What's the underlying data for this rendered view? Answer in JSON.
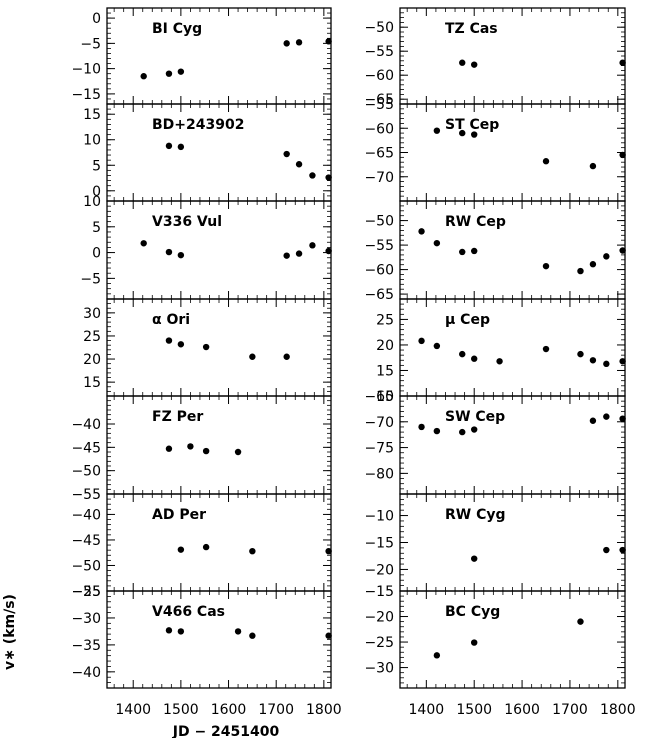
{
  "figure": {
    "ylabel": "v∗ (km/s)",
    "xlabel": "JD − 2451400"
  },
  "chart_data": [
    {
      "type": "scatter",
      "title": "BI Cyg",
      "ylim": [
        -17,
        2
      ],
      "yticks": [
        0,
        -5,
        -10,
        -15
      ],
      "xlim": [
        1345,
        1815
      ],
      "xticks": [
        1400,
        1500,
        1600,
        1700,
        1800
      ],
      "series": [
        {
          "x": [
            1422,
            1475,
            1500,
            1722,
            1748,
            1810
          ],
          "y": [
            -11.5,
            -11,
            -10.6,
            -5,
            -4.8,
            -4.6
          ]
        }
      ]
    },
    {
      "type": "scatter",
      "title": "BD+243902",
      "ylim": [
        -2,
        17
      ],
      "yticks": [
        15,
        10,
        5,
        0
      ],
      "xlim": [
        1345,
        1815
      ],
      "xticks": [
        1400,
        1500,
        1600,
        1700,
        1800
      ],
      "series": [
        {
          "x": [
            1475,
            1500,
            1722,
            1748,
            1776,
            1810
          ],
          "y": [
            8.8,
            8.6,
            7.2,
            5.2,
            3,
            2.6
          ]
        }
      ]
    },
    {
      "type": "scatter",
      "title": "V336 Vul",
      "ylim": [
        -9,
        10
      ],
      "yticks": [
        10,
        5,
        0,
        -5
      ],
      "xlim": [
        1345,
        1815
      ],
      "xticks": [
        1400,
        1500,
        1600,
        1700,
        1800
      ],
      "series": [
        {
          "x": [
            1422,
            1475,
            1500,
            1722,
            1748,
            1776,
            1810
          ],
          "y": [
            1.8,
            0.1,
            -0.5,
            -0.6,
            -0.2,
            1.4,
            0.3
          ]
        }
      ]
    },
    {
      "type": "scatter",
      "title": "α Ori",
      "ylim": [
        12,
        33
      ],
      "yticks": [
        30,
        25,
        20,
        15
      ],
      "xlim": [
        1345,
        1815
      ],
      "xticks": [
        1400,
        1500,
        1600,
        1700,
        1800
      ],
      "series": [
        {
          "x": [
            1475,
            1500,
            1553,
            1650,
            1722
          ],
          "y": [
            24,
            23.2,
            22.6,
            20.5,
            20.5
          ]
        }
      ]
    },
    {
      "type": "scatter",
      "title": "FZ Per",
      "ylim": [
        -55,
        -34
      ],
      "yticks": [
        -40,
        -45,
        -50,
        -55
      ],
      "xlim": [
        1345,
        1815
      ],
      "xticks": [
        1400,
        1500,
        1600,
        1700,
        1800
      ],
      "series": [
        {
          "x": [
            1475,
            1520,
            1553,
            1620
          ],
          "y": [
            -45.3,
            -44.8,
            -45.8,
            -46
          ]
        }
      ]
    },
    {
      "type": "scatter",
      "title": "AD Per",
      "ylim": [
        -55,
        -36
      ],
      "yticks": [
        -40,
        -45,
        -50,
        -55
      ],
      "xlim": [
        1345,
        1815
      ],
      "xticks": [
        1400,
        1500,
        1600,
        1700,
        1800
      ],
      "series": [
        {
          "x": [
            1500,
            1553,
            1650,
            1810
          ],
          "y": [
            -46.9,
            -46.4,
            -47.2,
            -47.2
          ]
        }
      ]
    },
    {
      "type": "scatter",
      "title": "V466 Cas",
      "ylim": [
        -43,
        -25
      ],
      "yticks": [
        -25,
        -30,
        -35,
        -40
      ],
      "xlim": [
        1345,
        1815
      ],
      "xticks": [
        1400,
        1500,
        1600,
        1700,
        1800
      ],
      "series": [
        {
          "x": [
            1475,
            1500,
            1620,
            1650,
            1810
          ],
          "y": [
            -32.3,
            -32.5,
            -32.5,
            -33.3,
            -33.3
          ]
        }
      ]
    },
    {
      "type": "scatter",
      "title": "TZ Cas",
      "ylim": [
        -66,
        -46
      ],
      "yticks": [
        -50,
        -55,
        -60,
        -65
      ],
      "xlim": [
        1345,
        1815
      ],
      "xticks": [
        1400,
        1500,
        1600,
        1700,
        1800
      ],
      "series": [
        {
          "x": [
            1475,
            1500,
            1810
          ],
          "y": [
            -57.4,
            -57.8,
            -57.4
          ]
        }
      ]
    },
    {
      "type": "scatter",
      "title": "ST Cep",
      "ylim": [
        -75,
        -55
      ],
      "yticks": [
        -55,
        -60,
        -65,
        -70
      ],
      "xlim": [
        1345,
        1815
      ],
      "xticks": [
        1400,
        1500,
        1600,
        1700,
        1800
      ],
      "series": [
        {
          "x": [
            1422,
            1475,
            1500,
            1650,
            1748,
            1810
          ],
          "y": [
            -60.5,
            -61,
            -61.3,
            -66.8,
            -67.8,
            -65.5
          ]
        }
      ]
    },
    {
      "type": "scatter",
      "title": "RW Cep",
      "ylim": [
        -66,
        -46
      ],
      "yticks": [
        -50,
        -55,
        -60,
        -65
      ],
      "xlim": [
        1345,
        1815
      ],
      "xticks": [
        1400,
        1500,
        1600,
        1700,
        1800
      ],
      "series": [
        {
          "x": [
            1390,
            1422,
            1475,
            1500,
            1650,
            1722,
            1748,
            1776,
            1810
          ],
          "y": [
            -52.2,
            -54.6,
            -56.4,
            -56.2,
            -59.3,
            -60.3,
            -58.9,
            -57.3,
            -56.1
          ]
        }
      ]
    },
    {
      "type": "scatter",
      "title": "μ Cep",
      "ylim": [
        10,
        29
      ],
      "yticks": [
        25,
        20,
        15,
        10
      ],
      "xlim": [
        1345,
        1815
      ],
      "xticks": [
        1400,
        1500,
        1600,
        1700,
        1800
      ],
      "series": [
        {
          "x": [
            1390,
            1422,
            1475,
            1500,
            1553,
            1650,
            1722,
            1748,
            1776,
            1810
          ],
          "y": [
            20.8,
            19.8,
            18.2,
            17.3,
            16.8,
            19.2,
            18.2,
            17,
            16.3,
            16.8
          ]
        }
      ]
    },
    {
      "type": "scatter",
      "title": "SW Cep",
      "ylim": [
        -84,
        -65
      ],
      "yticks": [
        -65,
        -70,
        -75,
        -80
      ],
      "xlim": [
        1345,
        1815
      ],
      "xticks": [
        1400,
        1500,
        1600,
        1700,
        1800
      ],
      "series": [
        {
          "x": [
            1390,
            1422,
            1475,
            1500,
            1748,
            1776,
            1810
          ],
          "y": [
            -71,
            -71.8,
            -72,
            -71.5,
            -69.8,
            -69,
            -69.4
          ]
        }
      ]
    },
    {
      "type": "scatter",
      "title": "RW Cyg",
      "ylim": [
        -24,
        -6
      ],
      "yticks": [
        -10,
        -15,
        -20
      ],
      "xlim": [
        1345,
        1815
      ],
      "xticks": [
        1400,
        1500,
        1600,
        1700,
        1800
      ],
      "series": [
        {
          "x": [
            1500,
            1776,
            1810
          ],
          "y": [
            -18,
            -16.4,
            -16.4
          ]
        }
      ]
    },
    {
      "type": "scatter",
      "title": "BC Cyg",
      "ylim": [
        -34,
        -15
      ],
      "yticks": [
        -15,
        -20,
        -25,
        -30
      ],
      "xlim": [
        1345,
        1815
      ],
      "xticks": [
        1400,
        1500,
        1600,
        1700,
        1800
      ],
      "series": [
        {
          "x": [
            1422,
            1500,
            1722
          ],
          "y": [
            -27.6,
            -25.1,
            -21
          ]
        }
      ]
    }
  ]
}
